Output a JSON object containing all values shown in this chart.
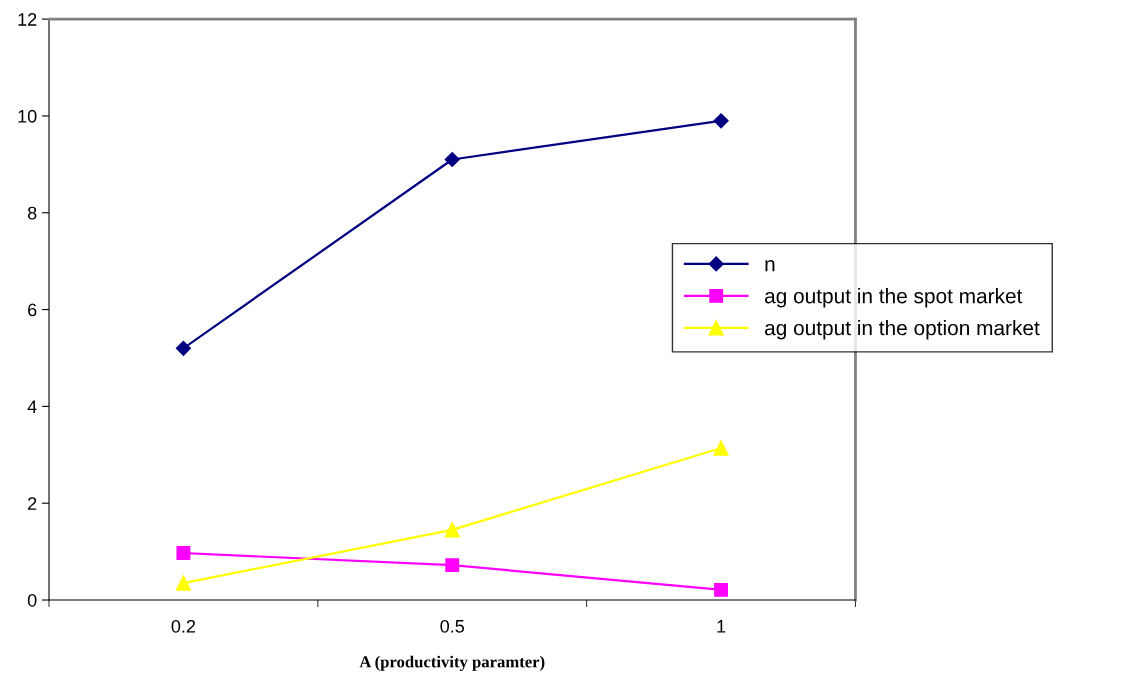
{
  "chart_data": {
    "type": "line",
    "xlabel": "A (productivity paramter)",
    "categories": [
      "0.2",
      "0.5",
      "1"
    ],
    "series": [
      {
        "name": "n",
        "color": "#000080",
        "marker": "diamond",
        "values": [
          5.2,
          9.1,
          9.9
        ]
      },
      {
        "name": "ag output in the spot market",
        "color": "#ff00ff",
        "marker": "square",
        "values": [
          0.97,
          0.72,
          0.21
        ]
      },
      {
        "name": "ag output in the option market",
        "color": "#ffff00",
        "marker": "triangle",
        "values": [
          0.35,
          1.45,
          3.14
        ]
      }
    ],
    "ylim": [
      0,
      12
    ],
    "yticks": [
      0,
      2,
      4,
      6,
      8,
      10,
      12
    ],
    "grid": false,
    "legend": "right"
  }
}
